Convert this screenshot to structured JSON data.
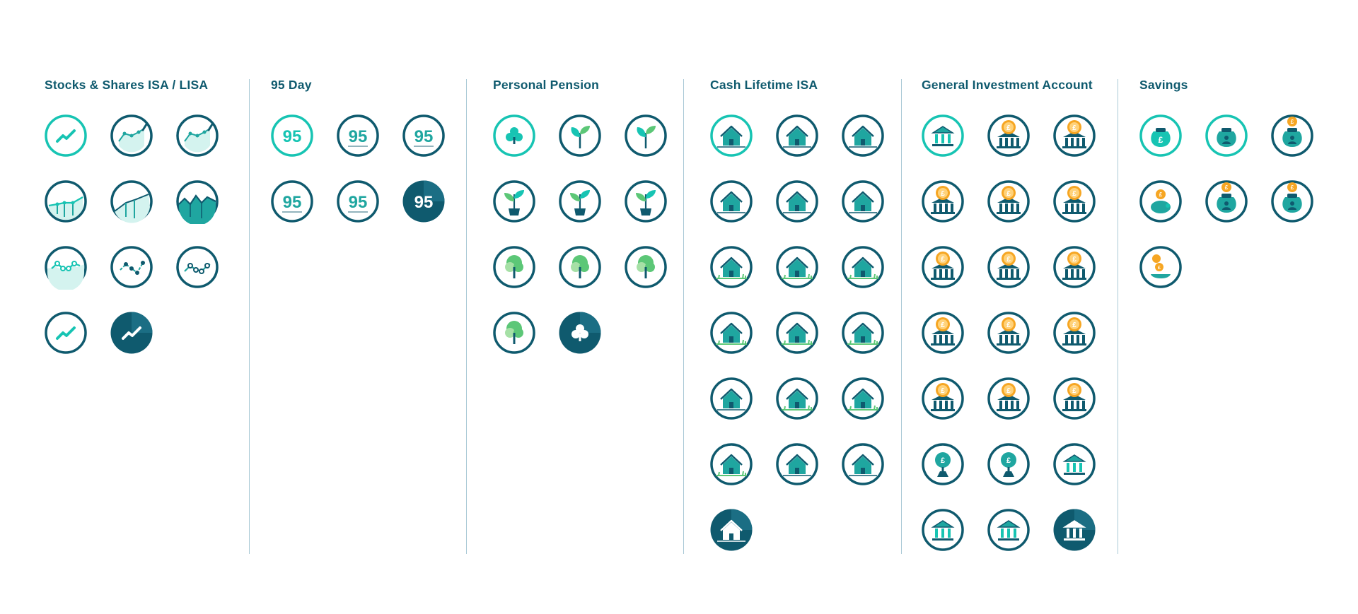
{
  "palette": {
    "navy": "#0f5a6e",
    "teal": "#17c4b3",
    "mint": "#d4f3ef",
    "mid_teal": "#1fa6a0",
    "dark": "#0c5169",
    "green": "#5cc777",
    "light_green": "#a6e0a6",
    "orange": "#f6a623",
    "orange_light": "#ffd27a"
  },
  "columns": [
    {
      "title": "Stocks & Shares ISA / LISA",
      "icons": [
        {
          "name": "trend-line-teal-icon",
          "style": "teal",
          "glyph": "trend"
        },
        {
          "name": "line-chart-area-icon",
          "style": "navy",
          "glyph": "area-dots"
        },
        {
          "name": "line-chart-dots-icon",
          "style": "navy",
          "glyph": "area-dots"
        },
        {
          "name": "bar-line-chart-icon",
          "style": "navy",
          "glyph": "bar-line"
        },
        {
          "name": "area-chart-icon",
          "style": "navy",
          "glyph": "area"
        },
        {
          "name": "mountain-chart-icon",
          "style": "navy",
          "glyph": "mountain"
        },
        {
          "name": "zigzag-chart-teal-icon",
          "style": "navy",
          "glyph": "zigzag-teal"
        },
        {
          "name": "zigzag-chart-dark-icon",
          "style": "navy",
          "glyph": "zigzag-dark"
        },
        {
          "name": "zigzag-chart-mixed-icon",
          "style": "navy",
          "glyph": "zigzag-mixed"
        },
        {
          "name": "trend-line-navy-icon",
          "style": "navy",
          "glyph": "trend"
        },
        {
          "name": "trend-line-filled-icon",
          "style": "filled",
          "glyph": "trend"
        }
      ]
    },
    {
      "title": "95 Day",
      "icons": [
        {
          "name": "ninety-five-teal-icon",
          "style": "teal",
          "glyph": "95",
          "label": "95"
        },
        {
          "name": "ninety-five-lines-icon",
          "style": "navy",
          "glyph": "95",
          "label": "95"
        },
        {
          "name": "ninety-five-bars-icon",
          "style": "navy",
          "glyph": "95",
          "label": "95"
        },
        {
          "name": "ninety-five-navy-icon",
          "style": "navy",
          "glyph": "95",
          "label": "95"
        },
        {
          "name": "ninety-five-wave-icon",
          "style": "navy",
          "glyph": "95",
          "label": "95"
        },
        {
          "name": "ninety-five-filled-icon",
          "style": "filled",
          "glyph": "95",
          "label": "95"
        }
      ]
    },
    {
      "title": "Personal Pension",
      "icons": [
        {
          "name": "club-teal-icon",
          "style": "teal",
          "glyph": "club"
        },
        {
          "name": "sprout-icon",
          "style": "navy",
          "glyph": "sprout"
        },
        {
          "name": "sprout-green-icon",
          "style": "navy",
          "glyph": "sprout"
        },
        {
          "name": "potted-plant-icon",
          "style": "navy",
          "glyph": "plant"
        },
        {
          "name": "potted-plant-teal-icon",
          "style": "navy",
          "glyph": "plant"
        },
        {
          "name": "potted-plant-tall-icon",
          "style": "navy",
          "glyph": "plant"
        },
        {
          "name": "tree-green-icon",
          "style": "navy",
          "glyph": "tree"
        },
        {
          "name": "tree-light-icon",
          "style": "navy",
          "glyph": "tree"
        },
        {
          "name": "tree-teal-icon",
          "style": "navy",
          "glyph": "tree"
        },
        {
          "name": "tree-pale-icon",
          "style": "navy",
          "glyph": "tree"
        },
        {
          "name": "club-filled-icon",
          "style": "filled",
          "glyph": "club"
        }
      ]
    },
    {
      "title": "Cash Lifetime ISA",
      "icons": [
        {
          "name": "house-teal-icon",
          "style": "teal",
          "glyph": "house"
        },
        {
          "name": "house-icon-1",
          "style": "navy",
          "glyph": "house"
        },
        {
          "name": "house-icon-2",
          "style": "navy",
          "glyph": "house"
        },
        {
          "name": "house-icon-3",
          "style": "navy",
          "glyph": "house"
        },
        {
          "name": "house-icon-4",
          "style": "navy",
          "glyph": "house"
        },
        {
          "name": "house-icon-5",
          "style": "navy",
          "glyph": "house"
        },
        {
          "name": "house-grass-icon-1",
          "style": "navy",
          "glyph": "house-grass"
        },
        {
          "name": "house-grass-icon-2",
          "style": "navy",
          "glyph": "house-grass"
        },
        {
          "name": "house-grass-icon-3",
          "style": "navy",
          "glyph": "house-grass"
        },
        {
          "name": "house-grass-icon-4",
          "style": "navy",
          "glyph": "house-grass"
        },
        {
          "name": "house-grass-icon-5",
          "style": "navy",
          "glyph": "house-grass"
        },
        {
          "name": "house-grass-icon-6",
          "style": "navy",
          "glyph": "house-grass"
        },
        {
          "name": "house-icon-6",
          "style": "navy",
          "glyph": "house"
        },
        {
          "name": "house-grass-icon-7",
          "style": "navy",
          "glyph": "house-grass"
        },
        {
          "name": "house-grass-icon-8",
          "style": "navy",
          "glyph": "house-grass"
        },
        {
          "name": "house-bush-icon-1",
          "style": "navy",
          "glyph": "house-grass"
        },
        {
          "name": "house-bush-icon-2",
          "style": "navy",
          "glyph": "house"
        },
        {
          "name": "house-icon-7",
          "style": "navy",
          "glyph": "house"
        },
        {
          "name": "house-filled-icon",
          "style": "filled",
          "glyph": "house"
        }
      ]
    },
    {
      "title": "General Investment Account",
      "icons": [
        {
          "name": "bank-teal-icon",
          "style": "teal",
          "glyph": "bank"
        },
        {
          "name": "bank-coin-icon-1",
          "style": "navy",
          "glyph": "bank-coin"
        },
        {
          "name": "bank-coin-icon-2",
          "style": "navy",
          "glyph": "bank-coin"
        },
        {
          "name": "bank-coin-icon-3",
          "style": "navy",
          "glyph": "bank-coin"
        },
        {
          "name": "bank-coin-icon-4",
          "style": "navy",
          "glyph": "bank-coin"
        },
        {
          "name": "bank-coin-icon-5",
          "style": "navy",
          "glyph": "bank-coin"
        },
        {
          "name": "bank-coin-icon-6",
          "style": "navy",
          "glyph": "bank-coin"
        },
        {
          "name": "bank-coin-icon-7",
          "style": "navy",
          "glyph": "bank-coin"
        },
        {
          "name": "bank-coin-icon-8",
          "style": "navy",
          "glyph": "bank-coin"
        },
        {
          "name": "bank-coin-icon-9",
          "style": "navy",
          "glyph": "bank-coin"
        },
        {
          "name": "bank-coin-icon-10",
          "style": "navy",
          "glyph": "bank-coin"
        },
        {
          "name": "bank-coin-icon-11",
          "style": "navy",
          "glyph": "bank-coin"
        },
        {
          "name": "bank-coin-icon-12",
          "style": "navy",
          "glyph": "bank-coin"
        },
        {
          "name": "bank-coin-icon-13",
          "style": "navy",
          "glyph": "bank-coin"
        },
        {
          "name": "bank-coin-icon-14",
          "style": "navy",
          "glyph": "bank-coin"
        },
        {
          "name": "coin-tree-icon-1",
          "style": "navy",
          "glyph": "coin-tree"
        },
        {
          "name": "coin-tree-icon-2",
          "style": "navy",
          "glyph": "coin-tree"
        },
        {
          "name": "bank-icon-1",
          "style": "navy",
          "glyph": "bank"
        },
        {
          "name": "bank-icon-2",
          "style": "navy",
          "glyph": "bank"
        },
        {
          "name": "bank-icon-3",
          "style": "navy",
          "glyph": "bank"
        },
        {
          "name": "bank-filled-icon",
          "style": "filled",
          "glyph": "bank"
        }
      ]
    },
    {
      "title": "Savings",
      "icons": [
        {
          "name": "money-bag-teal-icon",
          "style": "teal",
          "glyph": "bag"
        },
        {
          "name": "money-bag-person-teal-icon",
          "style": "teal",
          "glyph": "bag-person"
        },
        {
          "name": "money-bag-coin-icon",
          "style": "navy",
          "glyph": "bag-coin"
        },
        {
          "name": "piggy-bank-coin-icon",
          "style": "navy",
          "glyph": "piggy"
        },
        {
          "name": "money-bag-person-icon",
          "style": "navy",
          "glyph": "bag-coin"
        },
        {
          "name": "money-bag-drop-icon",
          "style": "navy",
          "glyph": "bag-coin"
        },
        {
          "name": "coin-stack-bowl-icon",
          "style": "navy",
          "glyph": "coins-bowl"
        }
      ]
    }
  ]
}
